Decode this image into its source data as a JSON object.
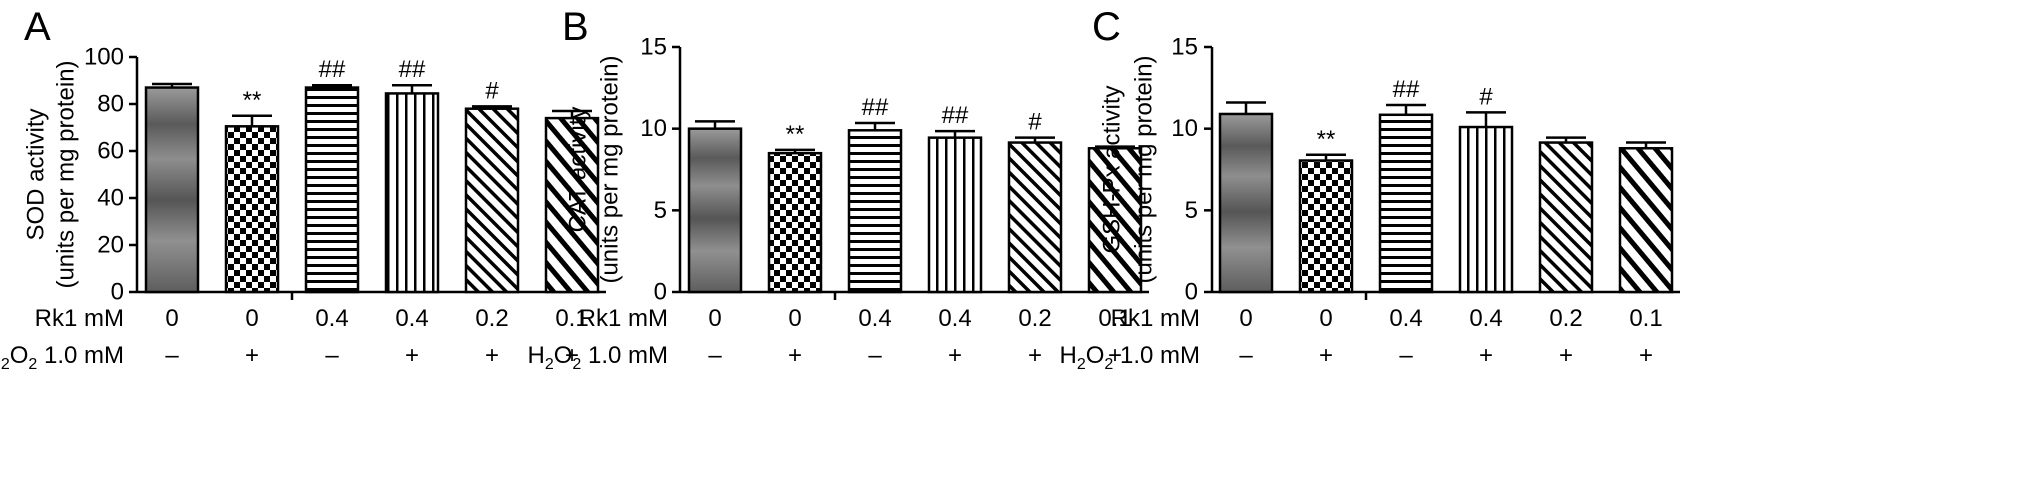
{
  "chart_data": [
    {
      "type": "bar",
      "panel": "A",
      "ylabel": "SOD activity",
      "ylabel2": "(units per mg protein)",
      "ylim": [
        0,
        100
      ],
      "yticks": [
        "0",
        "20",
        "40",
        "60",
        "80",
        "100"
      ],
      "values": [
        87,
        70.5,
        87,
        84.5,
        78,
        74
      ],
      "errors": [
        1.5,
        4.5,
        1,
        3.5,
        1,
        3
      ],
      "significance": [
        "",
        "**",
        "##",
        "##",
        "#",
        ""
      ],
      "rk1_row_label": "Rk1 mM",
      "rk1": [
        "0",
        "0",
        "0.4",
        "0.4",
        "0.2",
        "0.1"
      ],
      "h2o2_row_label": {
        "pre": "H",
        "sub1": "2",
        "mid": "O",
        "sub2": "2",
        "post": " 1.0 mM"
      },
      "h2o2": [
        "–",
        "+",
        "–",
        "+",
        "+",
        "+"
      ]
    },
    {
      "type": "bar",
      "panel": "B",
      "ylabel": "CAT activity",
      "ylabel2": "(units per mg protein)",
      "ylim": [
        0,
        15
      ],
      "yticks": [
        "0",
        "5",
        "10",
        "15"
      ],
      "values": [
        10,
        8.5,
        9.9,
        9.45,
        9.15,
        8.8
      ],
      "errors": [
        0.45,
        0.2,
        0.45,
        0.4,
        0.3,
        0.1
      ],
      "significance": [
        "",
        "**",
        "##",
        "##",
        "#",
        ""
      ],
      "rk1_row_label": "Rk1 mM",
      "rk1": [
        "0",
        "0",
        "0.4",
        "0.4",
        "0.2",
        "0.1"
      ],
      "h2o2_row_label": {
        "pre": "H",
        "sub1": "2",
        "mid": "O",
        "sub2": "2",
        "post": " 1.0 mM"
      },
      "h2o2": [
        "–",
        "+",
        "–",
        "+",
        "+",
        "+"
      ]
    },
    {
      "type": "bar",
      "panel": "C",
      "ylabel": "GSH-Px activity",
      "ylabel2": "(units per mg protein)",
      "ylim": [
        0,
        15
      ],
      "yticks": [
        "0",
        "5",
        "10",
        "15"
      ],
      "values": [
        10.9,
        8.05,
        10.85,
        10.1,
        9.15,
        8.8
      ],
      "errors": [
        0.7,
        0.35,
        0.6,
        0.9,
        0.3,
        0.35
      ],
      "significance": [
        "",
        "**",
        "##",
        "#",
        "",
        ""
      ],
      "rk1_row_label": "Rk1 mM",
      "rk1": [
        "0",
        "0",
        "0.4",
        "0.4",
        "0.2",
        "0.1"
      ],
      "h2o2_row_label": {
        "pre": "H",
        "sub1": "2",
        "mid": "O",
        "sub2": "2",
        "post": " 1.0 mM"
      },
      "h2o2": [
        "–",
        "+",
        "–",
        "+",
        "+",
        "+"
      ]
    }
  ]
}
